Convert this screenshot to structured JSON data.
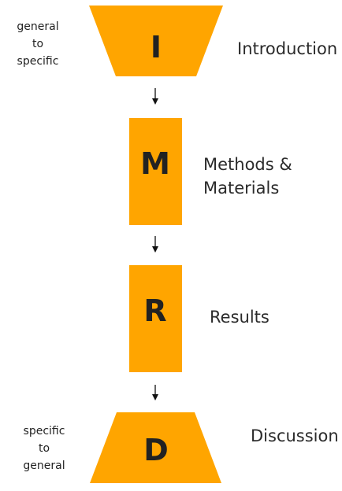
{
  "shape_color": "#FFA500",
  "notes": {
    "top": [
      "general",
      "to",
      "specific"
    ],
    "bottom": [
      "specific",
      "to",
      "general"
    ]
  },
  "sections": [
    {
      "letter": "I",
      "label_lines": [
        "Introduction"
      ],
      "shape": "inverted-trapezoid"
    },
    {
      "letter": "M",
      "label_lines": [
        "Methods &",
        "Materials"
      ],
      "shape": "rectangle"
    },
    {
      "letter": "R",
      "label_lines": [
        "Results"
      ],
      "shape": "rectangle"
    },
    {
      "letter": "D",
      "label_lines": [
        "Discussion"
      ],
      "shape": "trapezoid"
    }
  ]
}
